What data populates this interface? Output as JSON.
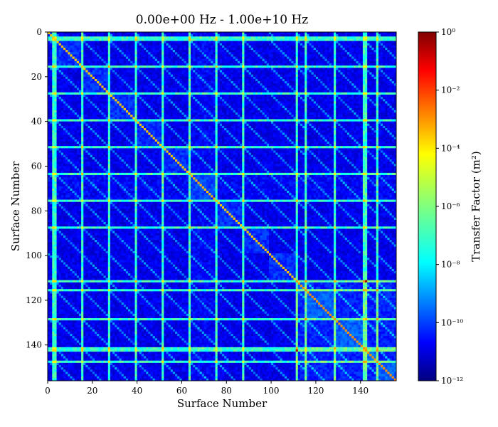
{
  "chart_data": {
    "type": "heatmap",
    "title": "0.00e+00 Hz - 1.00e+10 Hz",
    "xlabel": "Surface Number",
    "ylabel": "Surface Number",
    "n_surfaces": 156,
    "x_range": [
      0,
      156
    ],
    "y_range": [
      0,
      156
    ],
    "y_inverted": true,
    "x_ticks": [
      0,
      20,
      40,
      60,
      80,
      100,
      120,
      140
    ],
    "y_ticks": [
      0,
      20,
      40,
      60,
      80,
      100,
      120,
      140
    ],
    "block_boundaries": [
      0,
      3,
      15,
      27,
      39,
      51,
      63,
      75,
      87,
      99,
      111,
      115,
      128,
      141,
      147,
      156
    ],
    "colorbar": {
      "label": "Transfer Factor (m²)",
      "scale": "log",
      "min": 1e-12,
      "max": 1,
      "tick_exponents": [
        -12,
        -10,
        -8,
        -6,
        -4,
        -2,
        0
      ],
      "tick_labels": [
        "10⁻¹²",
        "10⁻¹⁰",
        "10⁻⁸",
        "10⁻⁶",
        "10⁻⁴",
        "10⁻²",
        "10⁰"
      ],
      "colormap": "jet"
    },
    "grid": false,
    "legend": "none"
  }
}
